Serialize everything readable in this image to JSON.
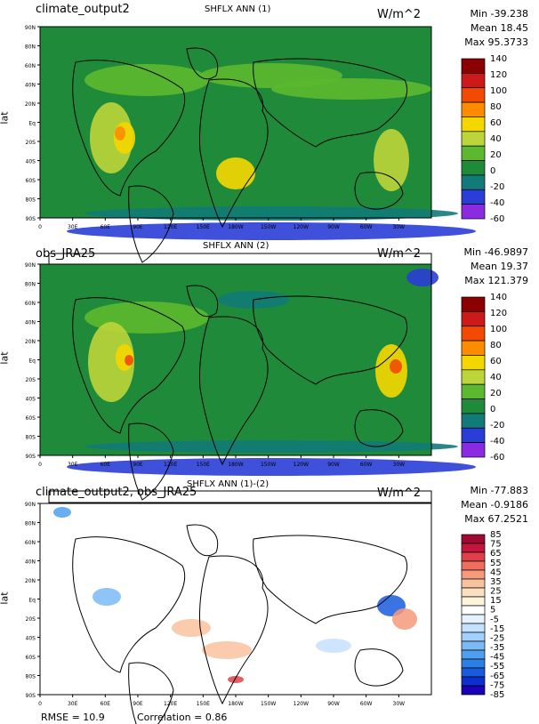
{
  "panels": [
    {
      "title": "climate_output2",
      "header": "SHFLX ANN (1)",
      "units": "W/m^2",
      "stats": [
        "Min -39.238",
        "Mean 18.45",
        "Max 95.3733"
      ],
      "colorbar": {
        "labels": [
          "140",
          "120",
          "100",
          "80",
          "60",
          "40",
          "20",
          "0",
          "-20",
          "-40",
          "-60"
        ],
        "colors": [
          "#8b0000",
          "#cc1a1a",
          "#f24a00",
          "#ff8c00",
          "#f5d700",
          "#bcd53a",
          "#5cb82f",
          "#1f8b3a",
          "#127a78",
          "#2a3dd6",
          "#8a2be2"
        ]
      }
    },
    {
      "title": "obs_JRA25",
      "header": "SHFLX ANN (2)",
      "units": "W/m^2",
      "stats": [
        "Min -46.9897",
        "Mean 19.37",
        "Max 121.379"
      ],
      "colorbar": {
        "labels": [
          "140",
          "120",
          "100",
          "80",
          "60",
          "40",
          "20",
          "0",
          "-20",
          "-40",
          "-60"
        ],
        "colors": [
          "#8b0000",
          "#cc1a1a",
          "#f24a00",
          "#ff8c00",
          "#f5d700",
          "#bcd53a",
          "#5cb82f",
          "#1f8b3a",
          "#127a78",
          "#2a3dd6",
          "#8a2be2"
        ]
      }
    },
    {
      "title": "climate_output2, obs_JRA25",
      "header": "SHFLX ANN (1)-(2)",
      "units": "W/m^2",
      "stats": [
        "Min -77.883",
        "Mean -0.9186",
        "Max 67.2521"
      ],
      "colorbar": {
        "labels": [
          "85",
          "75",
          "65",
          "55",
          "45",
          "35",
          "25",
          "15",
          "5",
          "-5",
          "-15",
          "-25",
          "-35",
          "-45",
          "-55",
          "-65",
          "-75",
          "-85"
        ],
        "colors": [
          "#9e0a32",
          "#c4163c",
          "#e0404a",
          "#f06e5e",
          "#f69a7c",
          "#f9c29e",
          "#fbdfc2",
          "#fdf4de",
          "#ffffff",
          "#e6f2ff",
          "#c4e1ff",
          "#a2d0ff",
          "#7bbaf6",
          "#4f9ff0",
          "#2d7fe6",
          "#1a5bdd",
          "#0f2ed0",
          "#1a00b8"
        ]
      },
      "footer": {
        "rmse": "RMSE = 10.9",
        "correlation": "Correlation = 0.86"
      }
    }
  ],
  "axes": {
    "lat_title": "lat",
    "lat_ticks": [
      "90N",
      "80N",
      "60N",
      "40N",
      "20N",
      "Eq",
      "20S",
      "40S",
      "60S",
      "80S",
      "90S"
    ],
    "lon_ticks": [
      "0",
      "30E",
      "60E",
      "90E",
      "120E",
      "150E",
      "180W",
      "150W",
      "120W",
      "90W",
      "60W",
      "30W"
    ]
  }
}
